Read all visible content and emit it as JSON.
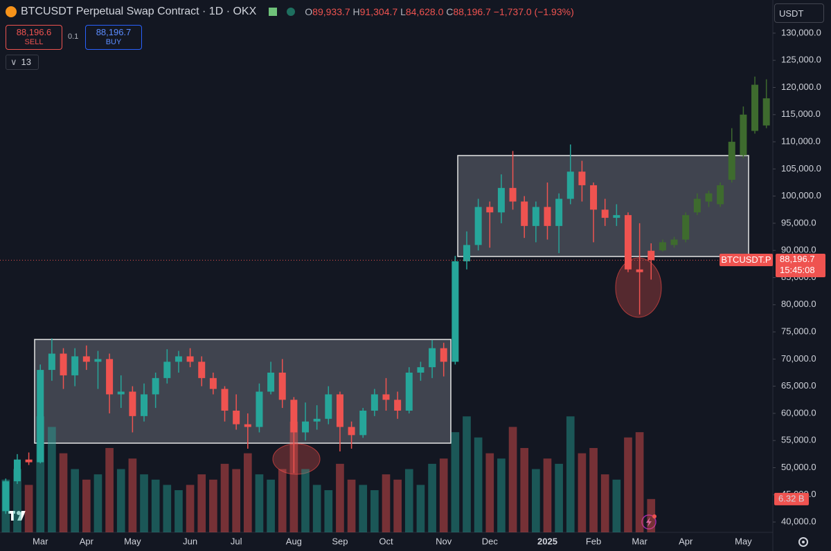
{
  "header": {
    "symbol": "BTCUSDT Perpetual Swap Contract · 1D · OKX",
    "ohlc": [
      {
        "label": "O",
        "value": "89,933.7"
      },
      {
        "label": "H",
        "value": "91,304.7"
      },
      {
        "label": "L",
        "value": "84,628.0"
      },
      {
        "label": "C",
        "value": "88,196.7"
      }
    ],
    "change": "−1,737.0 (−1.93%)"
  },
  "trade": {
    "sell_price": "88,196.6",
    "sell": "SELL",
    "quantity": "0.1",
    "buy_price": "88,196.7",
    "buy": "BUY"
  },
  "indicators_count": "13",
  "currency": "USDT",
  "price_tag": {
    "symbol": "BTCUSDT.P",
    "price": "88,196.7",
    "countdown": "15:45:08"
  },
  "chart_data": {
    "type": "candlestick",
    "categories": [
      null,
      null,
      null,
      "Mar",
      null,
      null,
      null,
      "Apr",
      null,
      null,
      null,
      "May",
      null,
      null,
      null,
      null,
      "Jun",
      null,
      null,
      null,
      "Jul",
      null,
      null,
      null,
      null,
      "Aug",
      null,
      null,
      null,
      "Sep",
      null,
      null,
      null,
      "Oct",
      null,
      null,
      null,
      null,
      "Nov",
      null,
      null,
      null,
      "Dec",
      null,
      null,
      null,
      null,
      "2025",
      null,
      null,
      null,
      "Feb",
      null,
      null,
      null,
      "Mar",
      null,
      null,
      null,
      "Apr",
      null,
      null,
      null,
      null,
      "May",
      null,
      null
    ],
    "series": [
      {
        "color": "#26a69a",
        "down_color": "#ef5350",
        "open": [
          42000,
          47500,
          51500,
          51000,
          68000,
          71000,
          67000,
          70500,
          69500,
          70000,
          63500,
          64000,
          59500,
          63500,
          66500,
          69500,
          70500,
          69500,
          66500,
          64500,
          60500,
          58000,
          57500,
          64000,
          67500,
          62500,
          56500,
          58500,
          59000,
          63500,
          57500,
          56000,
          60500,
          63500,
          62500,
          60500,
          67500,
          68500,
          72000,
          69500,
          88000,
          91000,
          98000,
          97000,
          101500,
          99000,
          94500,
          98000,
          94500,
          99500,
          104500,
          102000,
          97500,
          96000,
          96500,
          86500,
          89933.7,
          null,
          null,
          null,
          null,
          null,
          null,
          null,
          null,
          null,
          null
        ],
        "high": [
          48000,
          52500,
          52800,
          69000,
          73800,
          72000,
          72000,
          72500,
          71500,
          71000,
          67000,
          65000,
          65500,
          67500,
          71800,
          71500,
          72000,
          70500,
          67500,
          65000,
          63500,
          60000,
          65500,
          69500,
          70000,
          63000,
          62000,
          61500,
          65000,
          64000,
          58500,
          61000,
          64500,
          66500,
          64000,
          68500,
          69500,
          73500,
          73000,
          89000,
          93500,
          99500,
          99000,
          104000,
          108300,
          100000,
          99000,
          102500,
          100500,
          109500,
          106500,
          102500,
          99500,
          98500,
          97000,
          95000,
          91304.7,
          null,
          null,
          null,
          null,
          null,
          null,
          null,
          null,
          null,
          null
        ],
        "low": [
          41500,
          47000,
          50500,
          50800,
          66000,
          64500,
          65000,
          68000,
          64500,
          60000,
          61000,
          56500,
          58500,
          61000,
          65500,
          67500,
          68500,
          65000,
          63500,
          58500,
          57000,
          53500,
          56500,
          63500,
          61000,
          49000,
          55000,
          57000,
          58000,
          53000,
          53500,
          55500,
          59500,
          60500,
          59000,
          60000,
          66000,
          66500,
          66800,
          69000,
          86500,
          90000,
          90500,
          95000,
          97500,
          92300,
          91500,
          92000,
          89500,
          98500,
          99000,
          91500,
          94500,
          94500,
          86000,
          78200,
          84628,
          null,
          null,
          null,
          null,
          null,
          null,
          null,
          null,
          null,
          null
        ],
        "close": [
          47500,
          51500,
          51000,
          68000,
          71000,
          67000,
          70500,
          69500,
          70000,
          63500,
          64000,
          59500,
          63500,
          66500,
          69500,
          70500,
          69500,
          66500,
          64500,
          60500,
          58000,
          57500,
          64000,
          67500,
          62500,
          56500,
          58500,
          59000,
          63500,
          57500,
          56000,
          60500,
          63500,
          62500,
          60500,
          67500,
          68500,
          72000,
          69500,
          88000,
          91000,
          98000,
          97000,
          101500,
          99000,
          94500,
          98000,
          94500,
          99500,
          104500,
          102000,
          97500,
          96000,
          96500,
          86500,
          86000,
          88196.7,
          null,
          null,
          null,
          null,
          null,
          null,
          null,
          null,
          null,
          null
        ]
      },
      {
        "color": "#3e6b2e",
        "open": [
          null,
          null,
          null,
          null,
          null,
          null,
          null,
          null,
          null,
          null,
          null,
          null,
          null,
          null,
          null,
          null,
          null,
          null,
          null,
          null,
          null,
          null,
          null,
          null,
          null,
          null,
          null,
          null,
          null,
          null,
          null,
          null,
          null,
          null,
          null,
          null,
          null,
          null,
          null,
          null,
          null,
          null,
          null,
          null,
          null,
          null,
          null,
          null,
          null,
          null,
          null,
          null,
          null,
          null,
          null,
          null,
          null,
          90000,
          91000,
          92000,
          97000,
          99000,
          98500,
          103000,
          107500,
          112000,
          113000
        ],
        "high": [
          null,
          null,
          null,
          null,
          null,
          null,
          null,
          null,
          null,
          null,
          null,
          null,
          null,
          null,
          null,
          null,
          null,
          null,
          null,
          null,
          null,
          null,
          null,
          null,
          null,
          null,
          null,
          null,
          null,
          null,
          null,
          null,
          null,
          null,
          null,
          null,
          null,
          null,
          null,
          null,
          null,
          null,
          null,
          null,
          null,
          null,
          null,
          null,
          null,
          null,
          null,
          null,
          null,
          null,
          null,
          null,
          null,
          92000,
          92500,
          97000,
          100500,
          101000,
          102500,
          112500,
          116500,
          122000,
          121500
        ],
        "low": [
          null,
          null,
          null,
          null,
          null,
          null,
          null,
          null,
          null,
          null,
          null,
          null,
          null,
          null,
          null,
          null,
          null,
          null,
          null,
          null,
          null,
          null,
          null,
          null,
          null,
          null,
          null,
          null,
          null,
          null,
          null,
          null,
          null,
          null,
          null,
          null,
          null,
          null,
          null,
          null,
          null,
          null,
          null,
          null,
          null,
          null,
          null,
          null,
          null,
          null,
          null,
          null,
          null,
          null,
          null,
          null,
          null,
          89800,
          90500,
          91500,
          96500,
          98000,
          98000,
          102500,
          107000,
          111500,
          112500
        ],
        "close": [
          null,
          null,
          null,
          null,
          null,
          null,
          null,
          null,
          null,
          null,
          null,
          null,
          null,
          null,
          null,
          null,
          null,
          null,
          null,
          null,
          null,
          null,
          null,
          null,
          null,
          null,
          null,
          null,
          null,
          null,
          null,
          null,
          null,
          null,
          null,
          null,
          null,
          null,
          null,
          null,
          null,
          null,
          null,
          null,
          null,
          null,
          null,
          null,
          null,
          null,
          null,
          null,
          null,
          null,
          null,
          null,
          null,
          91500,
          92000,
          96500,
          99500,
          100500,
          102000,
          110000,
          115000,
          120500,
          118000
        ]
      }
    ],
    "volume": {
      "ylim": [
        0,
        101
      ],
      "values": [
        10,
        12,
        9,
        22,
        20,
        15,
        12,
        10,
        11,
        16,
        12,
        14,
        11,
        10,
        9,
        8,
        9,
        11,
        10,
        13,
        12,
        15,
        11,
        10,
        12,
        21,
        12,
        9,
        8,
        13,
        10,
        9,
        8,
        11,
        10,
        12,
        9,
        13,
        14,
        19,
        22,
        18,
        15,
        14,
        20,
        16,
        12,
        14,
        13,
        22,
        15,
        16,
        11,
        10,
        18,
        19,
        6.32,
        null,
        null,
        null,
        null,
        null,
        null,
        null,
        null,
        null,
        null
      ],
      "value_labels": [
        null,
        null,
        null,
        null,
        null,
        null,
        null,
        null,
        null,
        null,
        null,
        null,
        null,
        null,
        null,
        null,
        null,
        null,
        null,
        null,
        null,
        null,
        null,
        null,
        null,
        null,
        null,
        null,
        null,
        null,
        null,
        null,
        null,
        null,
        null,
        null,
        null,
        null,
        null,
        null,
        null,
        null,
        null,
        null,
        null,
        null,
        null,
        null,
        null,
        null,
        null,
        null,
        null,
        null,
        null,
        null,
        "6.32 B",
        null,
        null,
        null,
        null,
        null,
        null,
        null,
        null,
        null,
        null
      ]
    },
    "ylim": [
      38100,
      136100
    ],
    "yticks": [
      {
        "value": 40000,
        "label": "40,000.0"
      },
      {
        "value": 45000,
        "label": "45,000.0"
      },
      {
        "value": 50000,
        "label": "50,000.0"
      },
      {
        "value": 55000,
        "label": "55,000.0"
      },
      {
        "value": 60000,
        "label": "60,000.0"
      },
      {
        "value": 65000,
        "label": "65,000.0"
      },
      {
        "value": 70000,
        "label": "70,000.0"
      },
      {
        "value": 75000,
        "label": "75,000.0"
      },
      {
        "value": 80000,
        "label": "80,000.0"
      },
      {
        "value": 85000,
        "label": "85,000.0"
      },
      {
        "value": 90000,
        "label": "90,000.0"
      },
      {
        "value": 95000,
        "label": "95,000.0"
      },
      {
        "value": 100000,
        "label": "100,000.0"
      },
      {
        "value": 105000,
        "label": "105,000.0"
      },
      {
        "value": 110000,
        "label": "110,000.0"
      },
      {
        "value": 115000,
        "label": "115,000.0"
      },
      {
        "value": 120000,
        "label": "120,000.0"
      },
      {
        "value": 125000,
        "label": "125,000.0"
      },
      {
        "value": 130000,
        "label": "130,000.0"
      }
    ],
    "grid": false
  }
}
